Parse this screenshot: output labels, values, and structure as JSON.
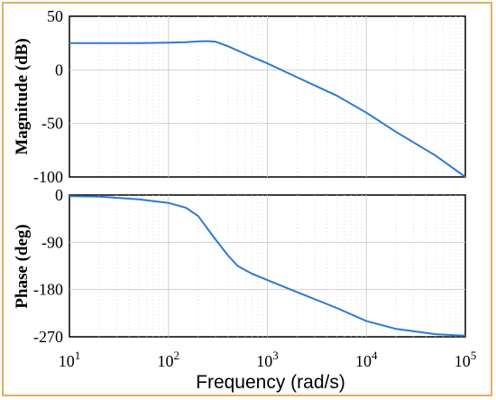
{
  "chart_data": [
    {
      "type": "line",
      "ylabel": "Magnitude (dB)",
      "xscale": "log",
      "xlim": [
        10,
        100000
      ],
      "ylim": [
        -100,
        50
      ],
      "yticks": [
        "50",
        "0",
        "-50",
        "-100"
      ],
      "ytick_values": [
        50,
        0,
        -50,
        -100
      ],
      "grid": true,
      "series": [
        {
          "color": "#2a7bd4",
          "x": [
            10,
            20,
            50,
            100,
            150,
            200,
            250,
            300,
            400,
            500,
            700,
            1000,
            2000,
            5000,
            10000,
            20000,
            50000,
            100000
          ],
          "y": [
            25,
            25,
            25,
            25.3,
            25.8,
            26.5,
            26.8,
            26.2,
            22,
            18,
            12,
            6,
            -7,
            -24,
            -40,
            -58,
            -80,
            -100
          ]
        }
      ]
    },
    {
      "type": "line",
      "ylabel": "Phase (deg)",
      "xlabel": "Frequency  (rad/s)",
      "xscale": "log",
      "xlim": [
        10,
        100000
      ],
      "ylim": [
        -270,
        0
      ],
      "yticks": [
        "0",
        "-90",
        "-180",
        "-270"
      ],
      "ytick_values": [
        0,
        -90,
        -180,
        -270
      ],
      "xtick_base": "10",
      "xtick_exponents": [
        "1",
        "2",
        "3",
        "4",
        "5"
      ],
      "xtick_values": [
        10,
        100,
        1000,
        10000,
        100000
      ],
      "grid": true,
      "series": [
        {
          "color": "#2a7bd4",
          "x": [
            10,
            20,
            50,
            100,
            150,
            200,
            300,
            400,
            500,
            700,
            1000,
            2000,
            5000,
            10000,
            20000,
            50000,
            100000
          ],
          "y": [
            -2,
            -3,
            -8,
            -15,
            -24,
            -40,
            -85,
            -115,
            -135,
            -150,
            -162,
            -185,
            -215,
            -240,
            -255,
            -265,
            -268
          ]
        }
      ]
    }
  ]
}
